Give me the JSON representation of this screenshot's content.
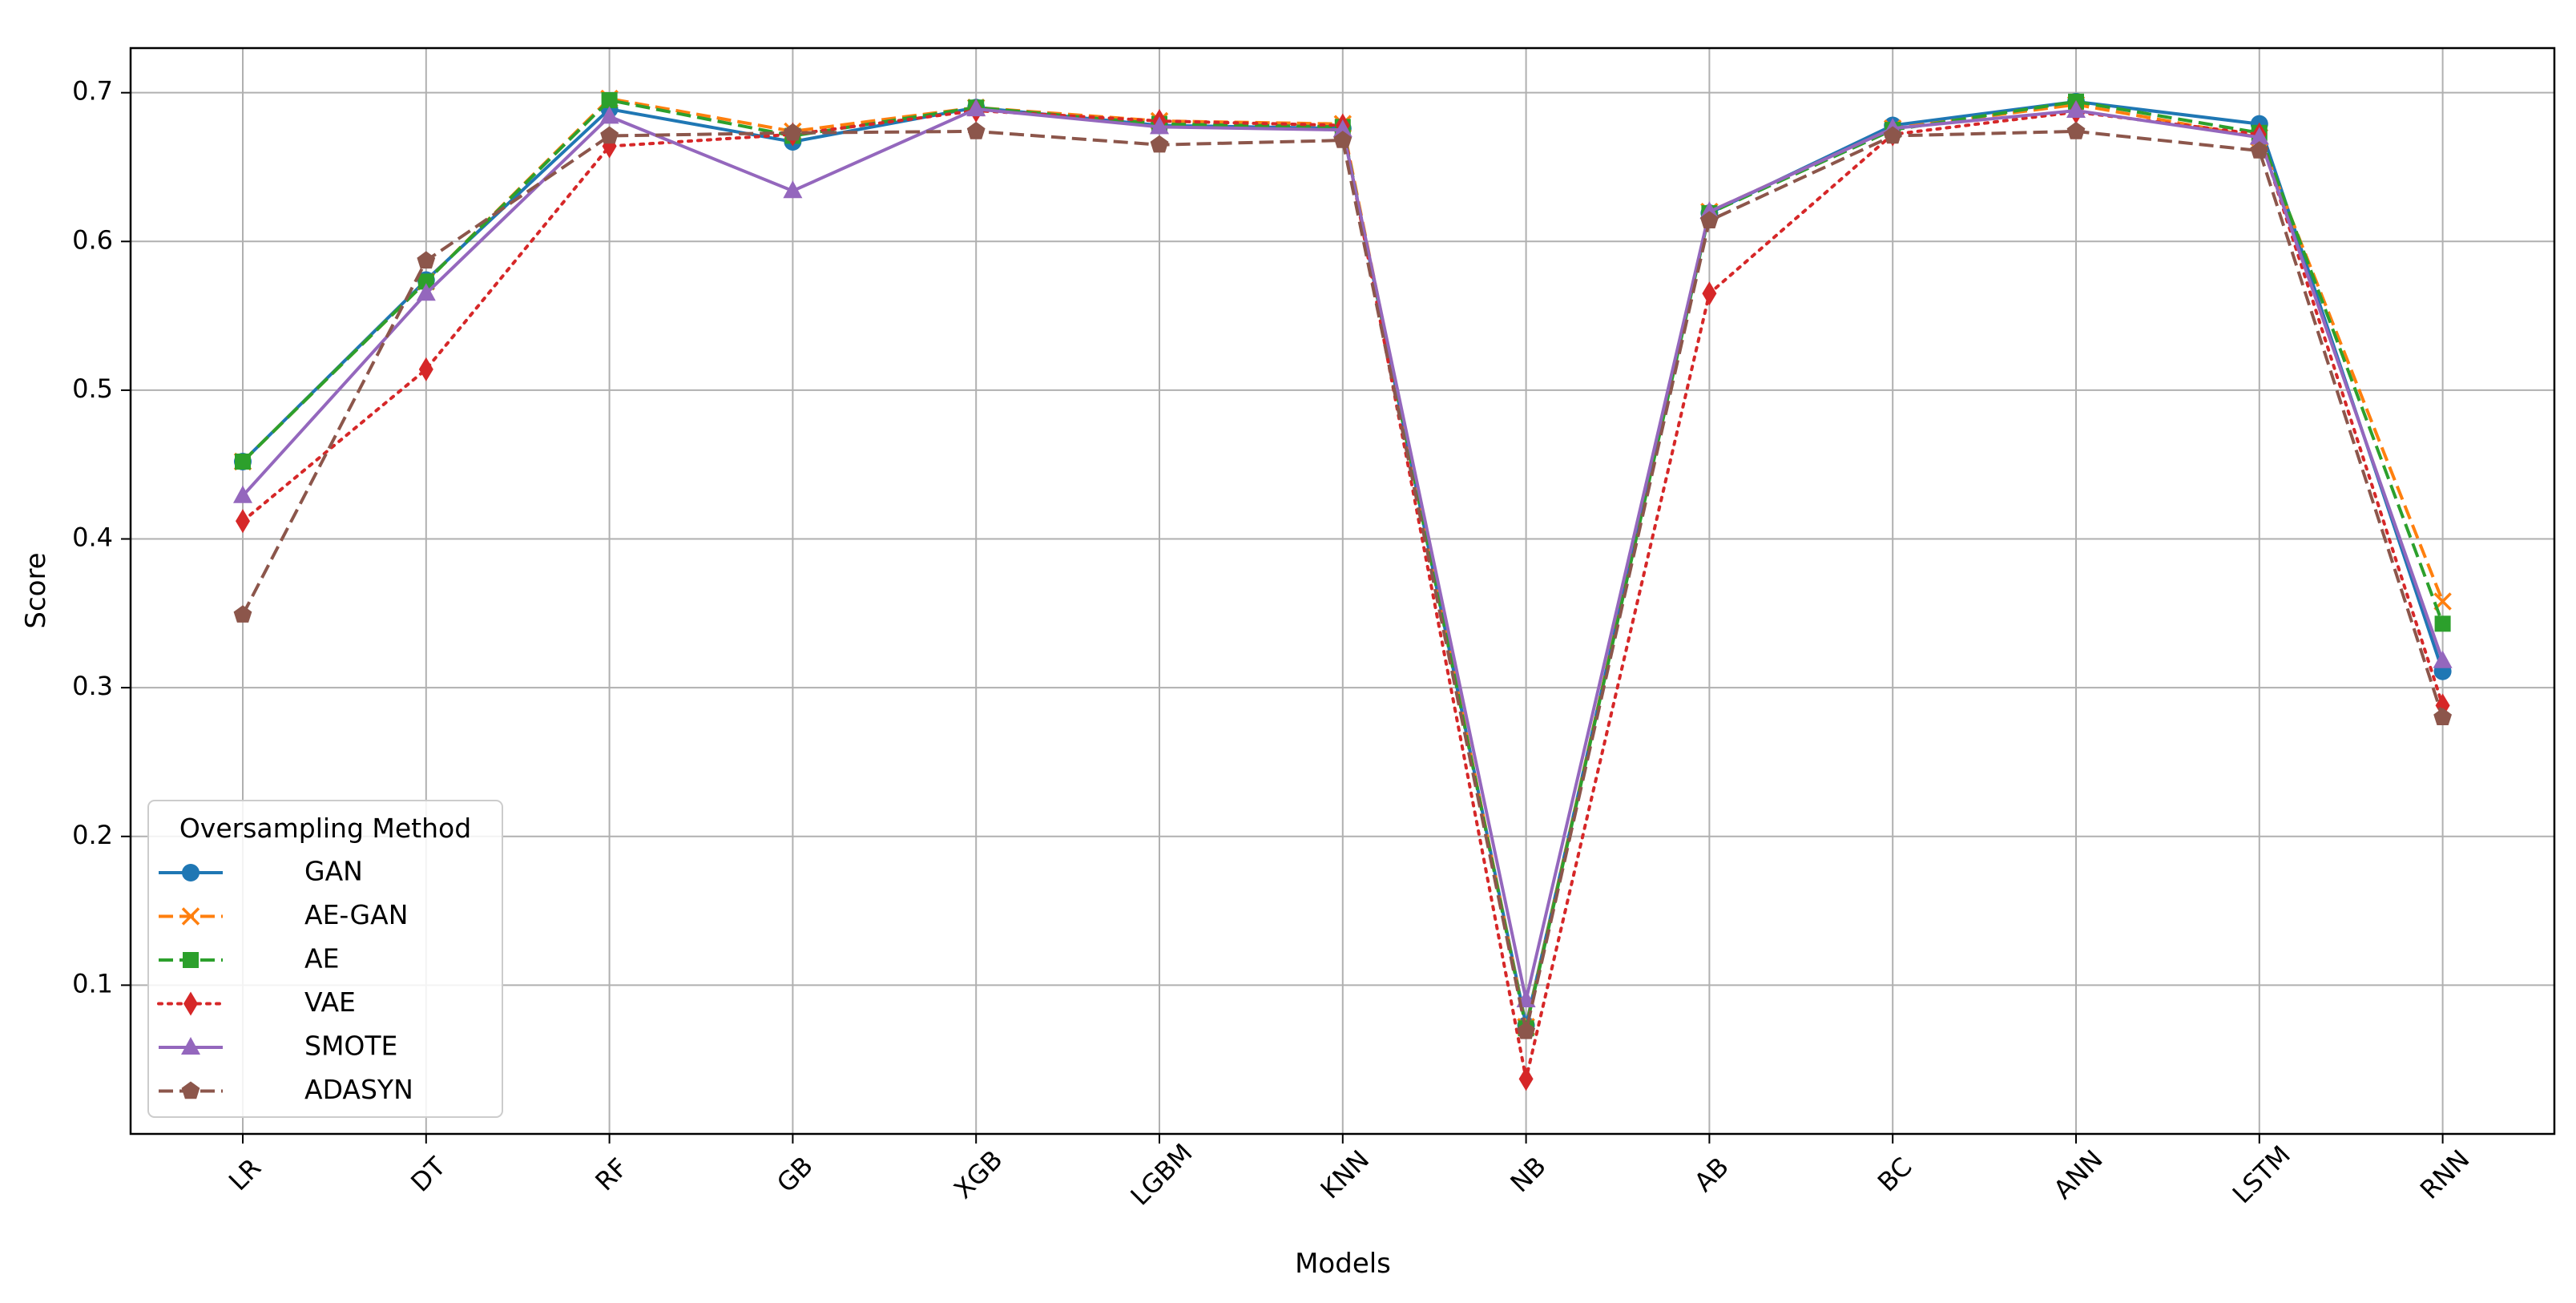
{
  "chart_data": {
    "type": "line",
    "title": "",
    "xlabel": "Models",
    "ylabel": "Score",
    "categories": [
      "LR",
      "DT",
      "RF",
      "GB",
      "XGB",
      "LGBM",
      "KNN",
      "NB",
      "AB",
      "BC",
      "ANN",
      "LSTM",
      "RNN"
    ],
    "ylim": [
      0.0,
      0.73
    ],
    "yticks": [
      "0.1",
      "0.2",
      "0.3",
      "0.4",
      "0.5",
      "0.6",
      "0.7"
    ],
    "grid": true,
    "legend": {
      "title": "Oversampling Method",
      "placement": "lower-left"
    },
    "series": [
      {
        "name": "GAN",
        "color": "#1f77b4",
        "marker": "circle",
        "line_style": "solid",
        "values": [
          0.452,
          0.574,
          0.689,
          0.667,
          0.69,
          0.678,
          0.676,
          0.073,
          0.619,
          0.678,
          0.694,
          0.679,
          0.311
        ]
      },
      {
        "name": "AE-GAN",
        "color": "#ff7f0e",
        "marker": "x",
        "line_style": "dashed",
        "values": [
          0.452,
          0.573,
          0.696,
          0.674,
          0.69,
          0.681,
          0.679,
          0.072,
          0.62,
          0.676,
          0.692,
          0.67,
          0.358
        ]
      },
      {
        "name": "AE",
        "color": "#2ca02c",
        "marker": "square",
        "line_style": "dashed",
        "values": [
          0.452,
          0.573,
          0.695,
          0.671,
          0.69,
          0.679,
          0.677,
          0.071,
          0.619,
          0.675,
          0.694,
          0.673,
          0.343
        ]
      },
      {
        "name": "VAE",
        "color": "#d62728",
        "marker": "diamond",
        "line_style": "dotted",
        "values": [
          0.412,
          0.514,
          0.664,
          0.672,
          0.688,
          0.681,
          0.678,
          0.037,
          0.565,
          0.672,
          0.687,
          0.672,
          0.288
        ]
      },
      {
        "name": "SMOTE",
        "color": "#9467bd",
        "marker": "triangle",
        "line_style": "solid",
        "values": [
          0.429,
          0.565,
          0.684,
          0.634,
          0.689,
          0.677,
          0.675,
          0.09,
          0.62,
          0.676,
          0.688,
          0.67,
          0.318
        ]
      },
      {
        "name": "ADASYN",
        "color": "#8c564b",
        "marker": "pentagon",
        "line_style": "dashed",
        "values": [
          0.349,
          0.587,
          0.671,
          0.673,
          0.674,
          0.665,
          0.668,
          0.069,
          0.614,
          0.671,
          0.674,
          0.661,
          0.28
        ]
      }
    ]
  }
}
